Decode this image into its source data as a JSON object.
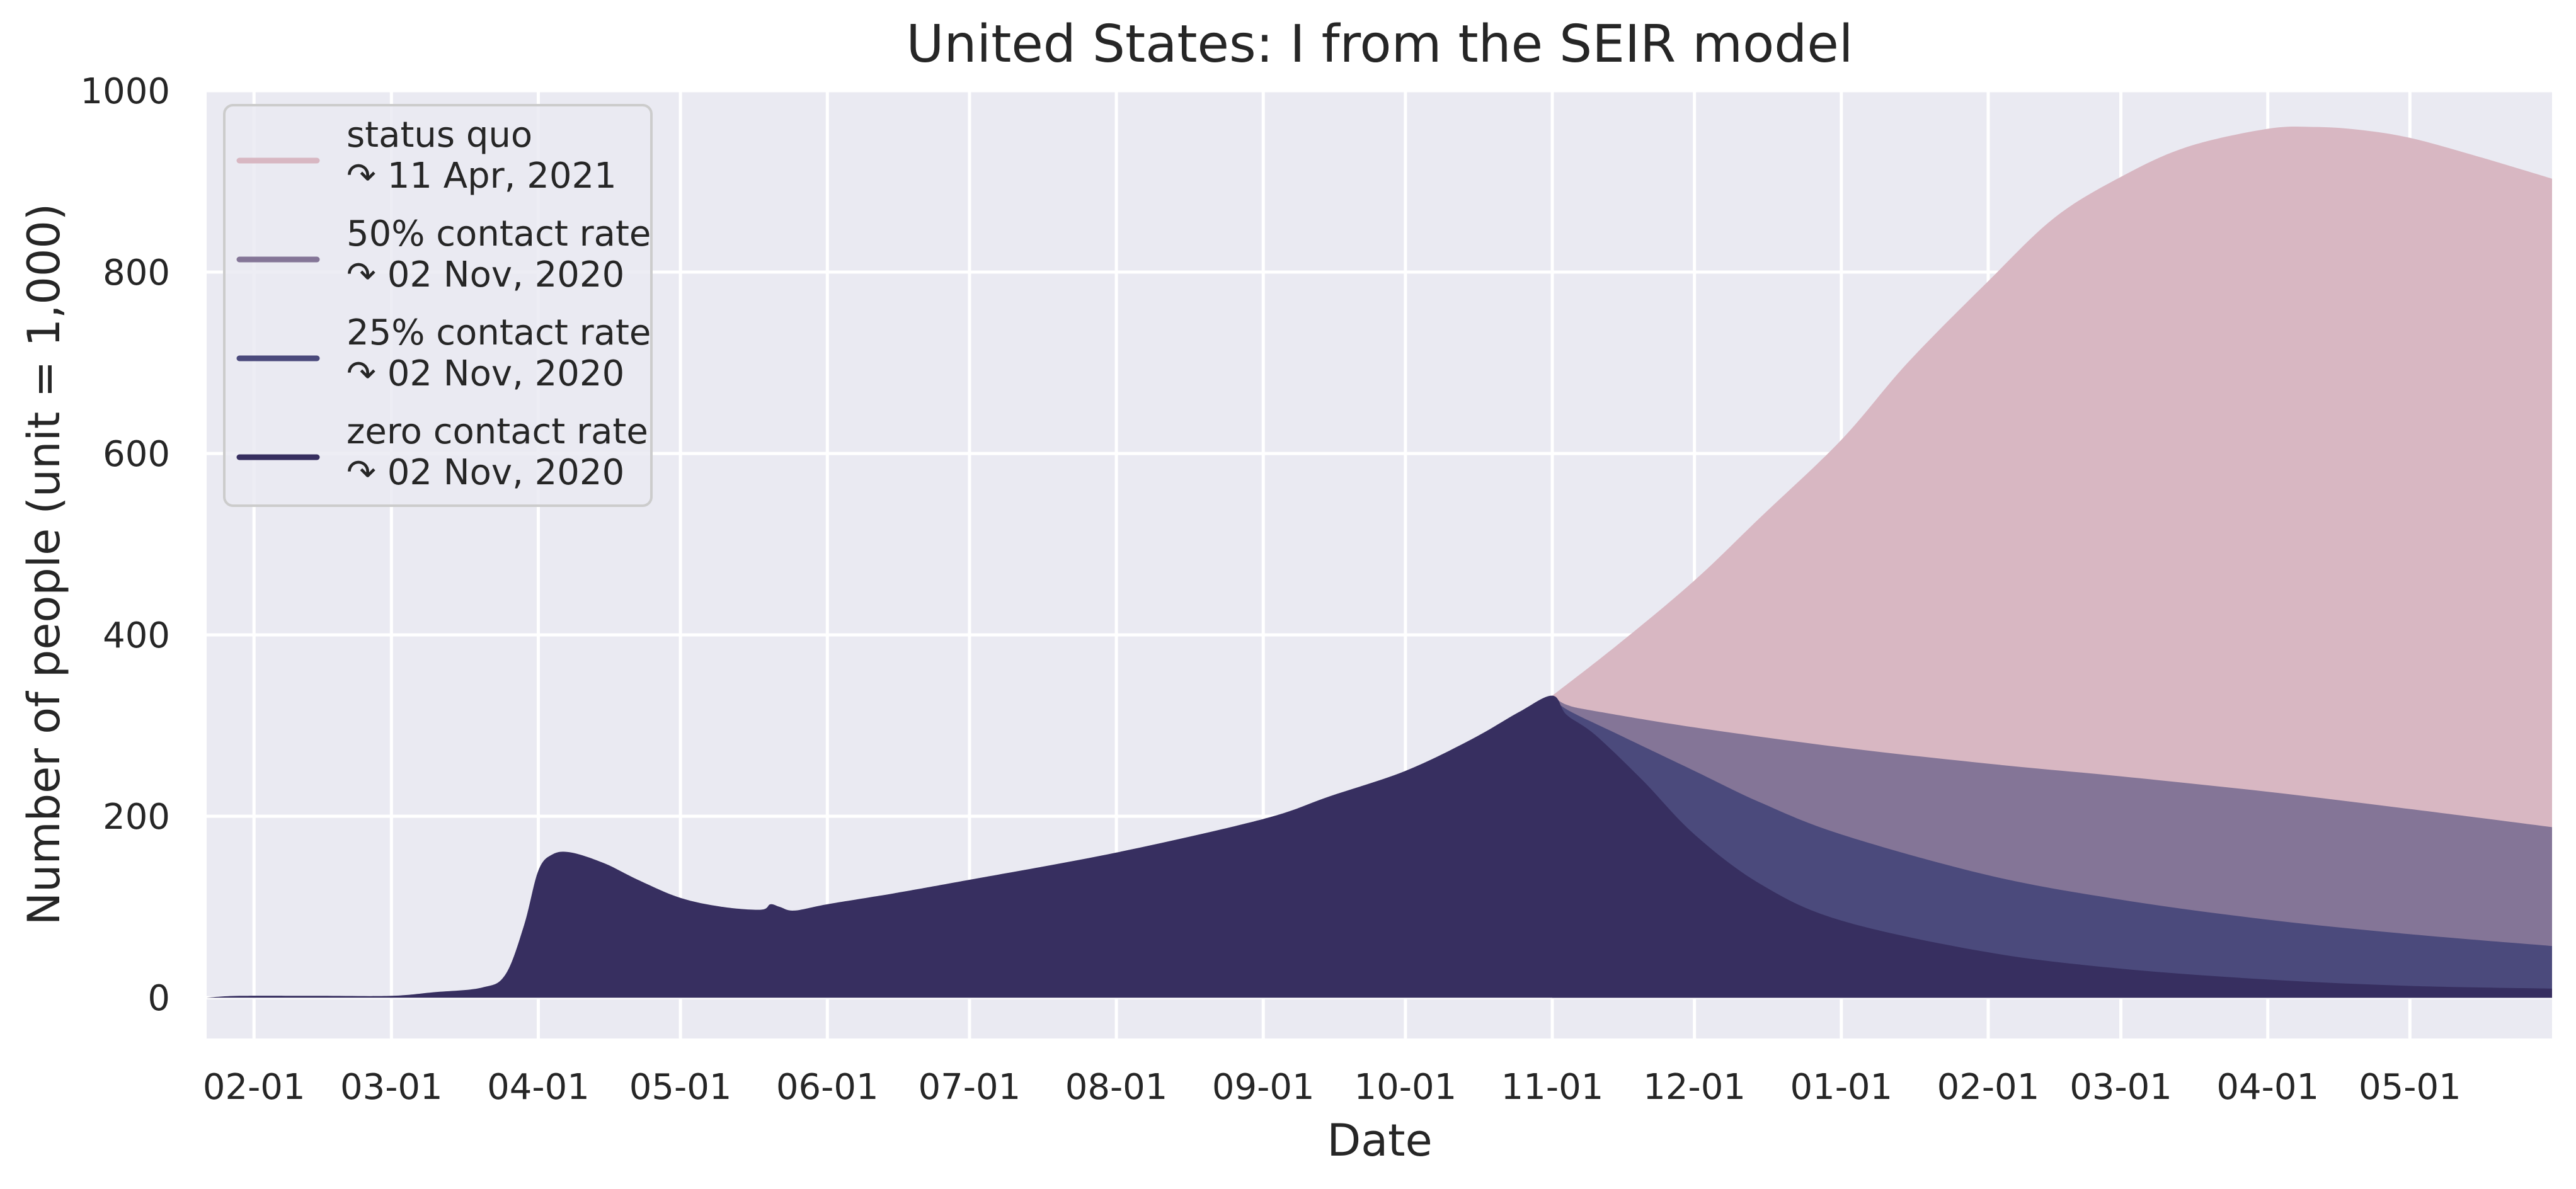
{
  "chart_data": {
    "type": "area",
    "title": "United States: I from the SEIR model",
    "xlabel": "Date",
    "ylabel": "Number of people (unit = 1,000)",
    "ylim": [
      -45,
      1000
    ],
    "xlim": [
      "2020-01-22",
      "2021-05-31"
    ],
    "grid": true,
    "legend_position": "top-left",
    "background": "#eaeaf2",
    "x_ticks": [
      {
        "date": "2020-02-01",
        "label": "02-01"
      },
      {
        "date": "2020-03-01",
        "label": "03-01"
      },
      {
        "date": "2020-04-01",
        "label": "04-01"
      },
      {
        "date": "2020-05-01",
        "label": "05-01"
      },
      {
        "date": "2020-06-01",
        "label": "06-01"
      },
      {
        "date": "2020-07-01",
        "label": "07-01"
      },
      {
        "date": "2020-08-01",
        "label": "08-01"
      },
      {
        "date": "2020-09-01",
        "label": "09-01"
      },
      {
        "date": "2020-10-01",
        "label": "10-01"
      },
      {
        "date": "2020-11-01",
        "label": "11-01"
      },
      {
        "date": "2020-12-01",
        "label": "12-01"
      },
      {
        "date": "2021-01-01",
        "label": "01-01"
      },
      {
        "date": "2021-02-01",
        "label": "02-01"
      },
      {
        "date": "2021-03-01",
        "label": "03-01"
      },
      {
        "date": "2021-04-01",
        "label": "04-01"
      },
      {
        "date": "2021-05-01",
        "label": "05-01"
      }
    ],
    "y_ticks": [
      0,
      200,
      400,
      600,
      800,
      1000
    ],
    "series": [
      {
        "name": "status quo",
        "legend_sub": "↷ 11 Apr, 2021",
        "color": "#d8b7c2",
        "points": [
          [
            "2020-11-01",
            333
          ],
          [
            "2020-11-15",
            390
          ],
          [
            "2020-12-01",
            460
          ],
          [
            "2020-12-15",
            530
          ],
          [
            "2021-01-01",
            615
          ],
          [
            "2021-01-15",
            700
          ],
          [
            "2021-02-01",
            790
          ],
          [
            "2021-02-15",
            860
          ],
          [
            "2021-03-01",
            905
          ],
          [
            "2021-03-15",
            938
          ],
          [
            "2021-04-01",
            958
          ],
          [
            "2021-04-11",
            960
          ],
          [
            "2021-04-20",
            957
          ],
          [
            "2021-05-01",
            948
          ],
          [
            "2021-05-15",
            928
          ],
          [
            "2021-05-31",
            903
          ]
        ]
      },
      {
        "name": "50% contact rate",
        "legend_sub": "↷ 02 Nov, 2020",
        "color": "#847597",
        "points": [
          [
            "2020-11-01",
            333
          ],
          [
            "2020-11-04",
            323
          ],
          [
            "2020-11-10",
            316
          ],
          [
            "2020-12-01",
            298
          ],
          [
            "2021-01-01",
            276
          ],
          [
            "2021-02-01",
            258
          ],
          [
            "2021-03-01",
            244
          ],
          [
            "2021-04-01",
            227
          ],
          [
            "2021-05-01",
            208
          ],
          [
            "2021-05-31",
            188
          ]
        ]
      },
      {
        "name": "25% contact rate",
        "legend_sub": "↷ 02 Nov, 2020",
        "color": "#4b4a7c",
        "points": [
          [
            "2020-11-01",
            333
          ],
          [
            "2020-11-04",
            318
          ],
          [
            "2020-11-15",
            290
          ],
          [
            "2020-12-01",
            250
          ],
          [
            "2020-12-15",
            215
          ],
          [
            "2021-01-01",
            180
          ],
          [
            "2021-02-01",
            135
          ],
          [
            "2021-03-01",
            108
          ],
          [
            "2021-04-01",
            86
          ],
          [
            "2021-05-01",
            70
          ],
          [
            "2021-05-31",
            57
          ]
        ]
      },
      {
        "name": "zero contact rate",
        "legend_sub": "↷ 02 Nov, 2020",
        "color": "#372f60",
        "points": [
          [
            "2020-01-22",
            0
          ],
          [
            "2020-01-29",
            2
          ],
          [
            "2020-02-15",
            2
          ],
          [
            "2020-03-01",
            2
          ],
          [
            "2020-03-10",
            6
          ],
          [
            "2020-03-20",
            11
          ],
          [
            "2020-03-25",
            25
          ],
          [
            "2020-03-29",
            80
          ],
          [
            "2020-04-01",
            140
          ],
          [
            "2020-04-04",
            158
          ],
          [
            "2020-04-08",
            160
          ],
          [
            "2020-04-15",
            148
          ],
          [
            "2020-04-22",
            130
          ],
          [
            "2020-05-01",
            110
          ],
          [
            "2020-05-10",
            100
          ],
          [
            "2020-05-18",
            97
          ],
          [
            "2020-05-20",
            103
          ],
          [
            "2020-05-22",
            100
          ],
          [
            "2020-05-25",
            96
          ],
          [
            "2020-06-01",
            103
          ],
          [
            "2020-06-15",
            115
          ],
          [
            "2020-07-01",
            130
          ],
          [
            "2020-08-01",
            160
          ],
          [
            "2020-09-01",
            197
          ],
          [
            "2020-09-15",
            222
          ],
          [
            "2020-10-01",
            250
          ],
          [
            "2020-10-15",
            285
          ],
          [
            "2020-10-25",
            315
          ],
          [
            "2020-11-01",
            333
          ],
          [
            "2020-11-04",
            312
          ],
          [
            "2020-11-10",
            290
          ],
          [
            "2020-11-20",
            240
          ],
          [
            "2020-12-01",
            180
          ],
          [
            "2020-12-15",
            125
          ],
          [
            "2021-01-01",
            85
          ],
          [
            "2021-02-01",
            50
          ],
          [
            "2021-03-01",
            32
          ],
          [
            "2021-04-01",
            20
          ],
          [
            "2021-05-01",
            13
          ],
          [
            "2021-05-31",
            10
          ]
        ]
      }
    ]
  }
}
